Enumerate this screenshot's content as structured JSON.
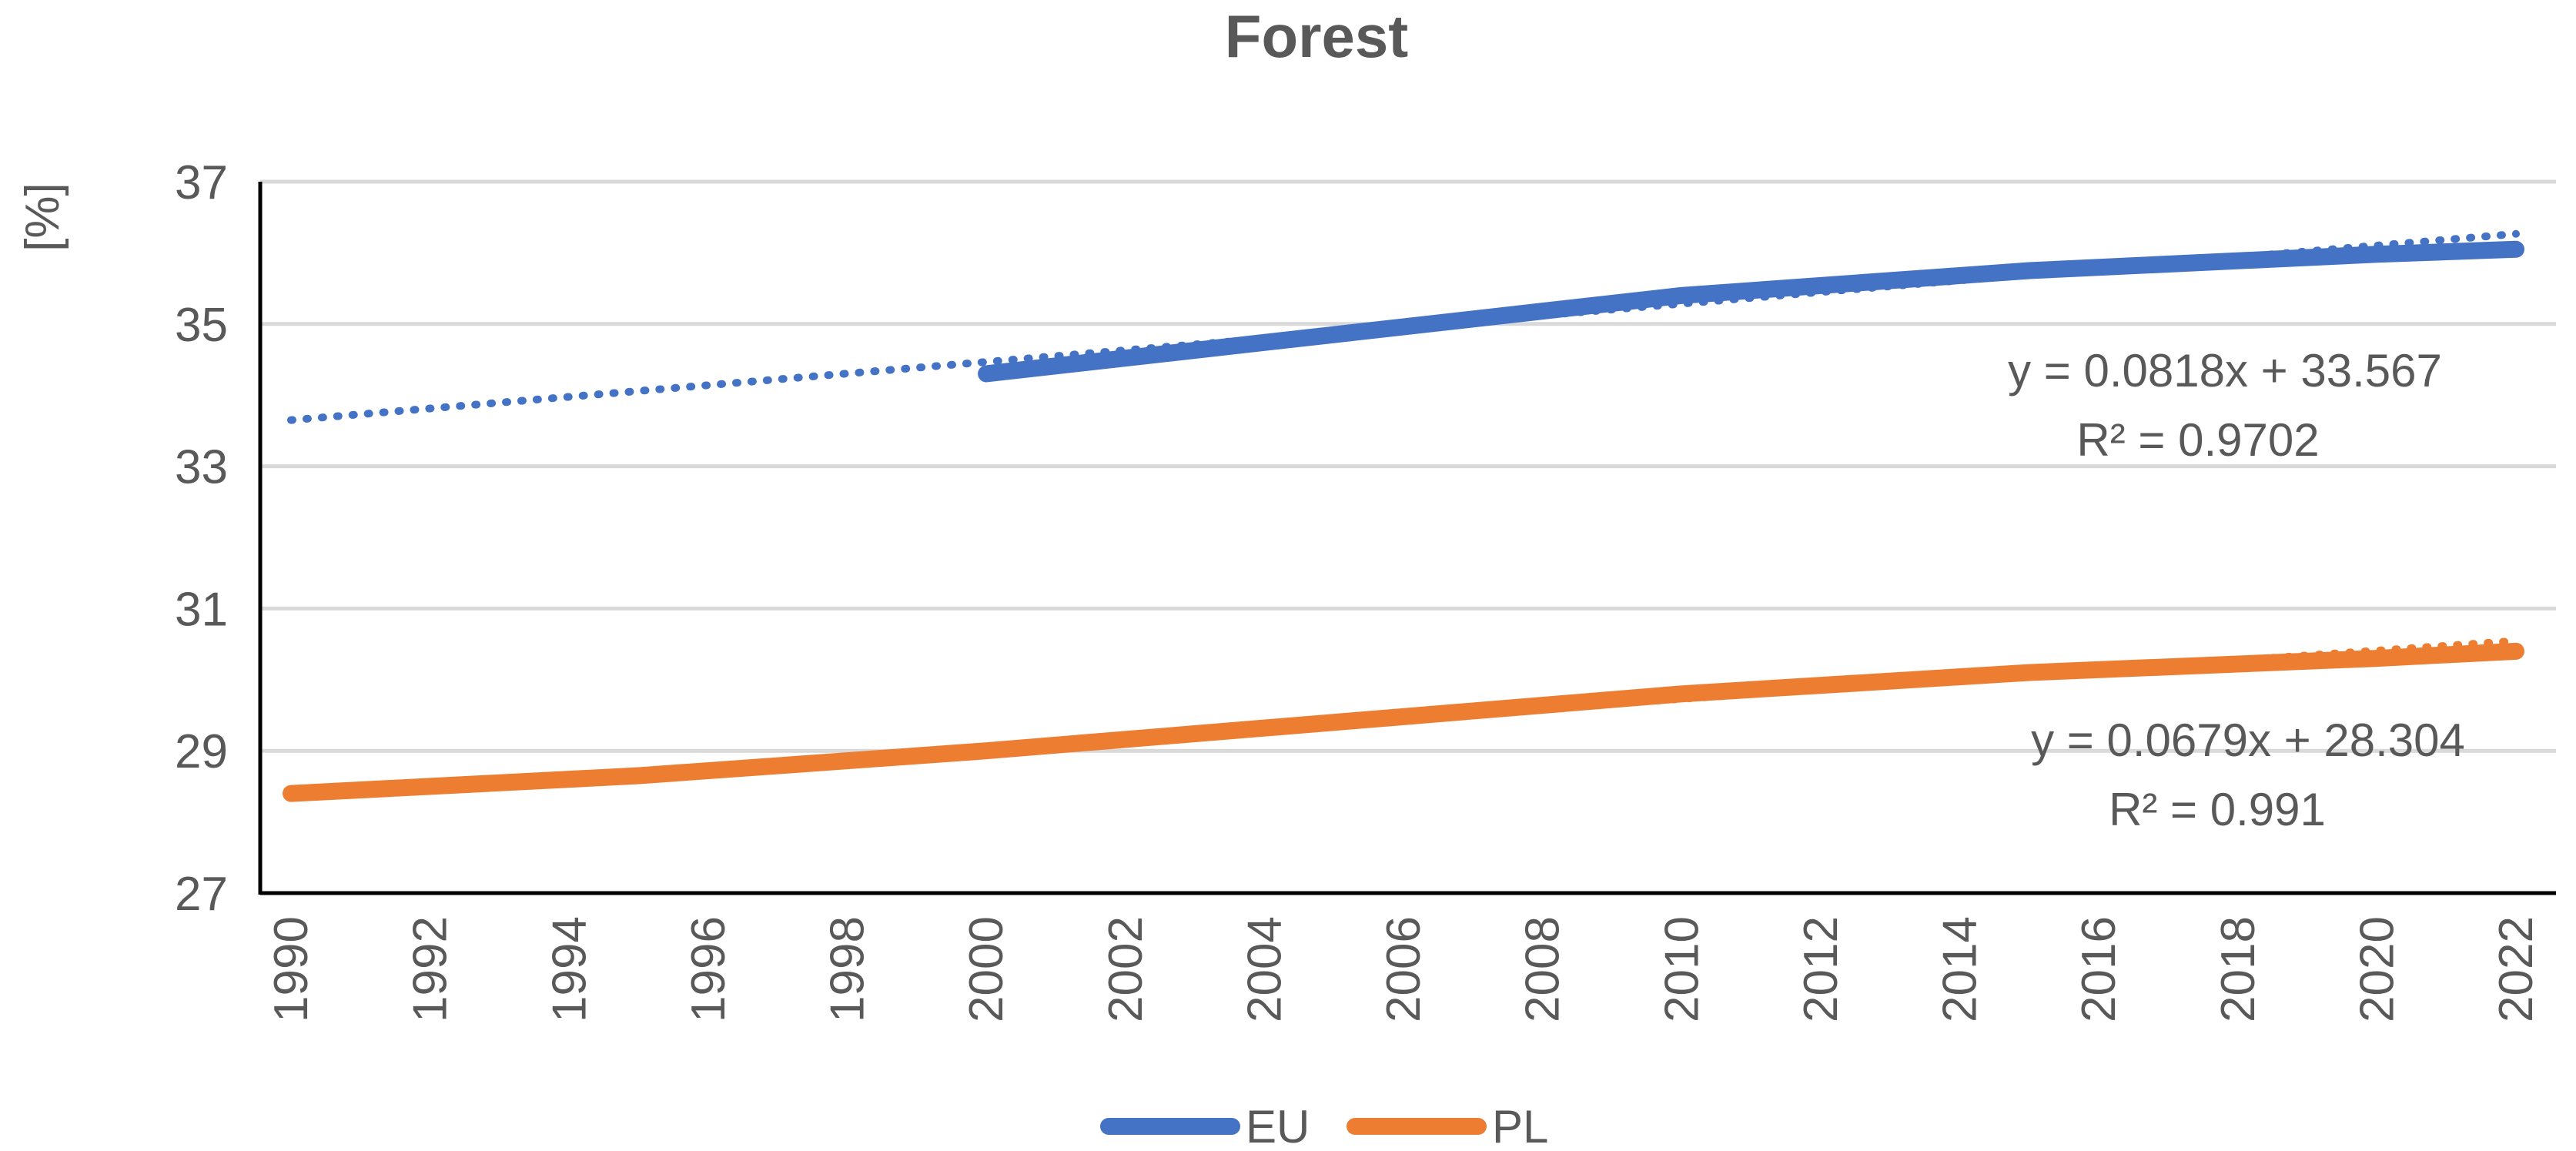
{
  "chart_data": {
    "type": "line",
    "title": "Forest",
    "xlabel": "",
    "ylabel": "[%]",
    "ylim": [
      27,
      37
    ],
    "yticks": [
      27,
      29,
      31,
      33,
      35,
      37
    ],
    "xlim": [
      1990,
      2022
    ],
    "xticks": [
      "1990",
      "1992",
      "1994",
      "1996",
      "1998",
      "2000",
      "2002",
      "2004",
      "2006",
      "2008",
      "2010",
      "2012",
      "2014",
      "2016",
      "2018",
      "2020",
      "2022"
    ],
    "grid": "horizontal",
    "legend": "bottom",
    "series": [
      {
        "name": "EU",
        "color": "#4472C4",
        "x": [
          2000,
          2005,
          2010,
          2015,
          2020,
          2022
        ],
        "values": [
          34.3,
          34.85,
          35.4,
          35.75,
          35.98,
          36.05
        ],
        "trendline": {
          "slope": 0.0818,
          "intercept": 33.567,
          "x_start": 1990,
          "x_end": 2022,
          "equation": "y = 0.0818x + 33.567",
          "r2": "R² = 0.9702"
        }
      },
      {
        "name": "PL",
        "color": "#ED7D31",
        "x": [
          1990,
          1995,
          2000,
          2005,
          2010,
          2015,
          2020,
          2022
        ],
        "values": [
          28.4,
          28.65,
          29.0,
          29.4,
          29.8,
          30.1,
          30.3,
          30.4
        ],
        "trendline": {
          "slope": 0.0679,
          "intercept": 28.304,
          "x_start": 1990,
          "x_end": 2022,
          "equation": "y = 0.0679x + 28.304",
          "r2": "R² = 0.991"
        }
      }
    ]
  }
}
